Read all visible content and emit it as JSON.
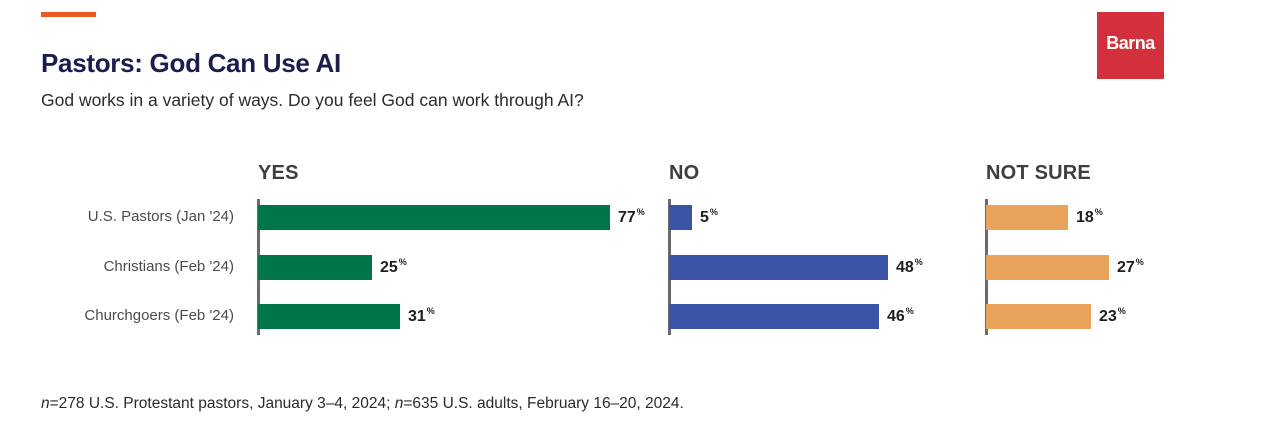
{
  "header": {
    "title": "Pastors: God Can Use AI",
    "subtitle": "God works in a variety of ways. Do you feel God can work through AI?",
    "logo_text": "Barna"
  },
  "footnote": {
    "n1_symbol": "n",
    "n1_text": "=278 U.S. Protestant pastors, January 3–4, 2024; ",
    "n2_symbol": "n",
    "n2_text": "=635 U.S. adults, February 16–20, 2024."
  },
  "colors": {
    "yes": "#00754a",
    "no": "#3b53a4",
    "not_sure": "#e9a35a",
    "accent": "#ec5a24",
    "logo_bg": "#d1303c",
    "title": "#1b1d4f"
  },
  "chart_data": {
    "type": "bar",
    "orientation": "horizontal",
    "title": "Pastors: God Can Use AI",
    "categories": [
      "U.S. Pastors (Jan '24)",
      "Christians (Feb '24)",
      "Churchgoers (Feb '24)"
    ],
    "value_suffix": "%",
    "series": [
      {
        "name": "YES",
        "values": [
          77,
          25,
          31
        ]
      },
      {
        "name": "NO",
        "values": [
          5,
          48,
          46
        ]
      },
      {
        "name": "NOT SURE",
        "values": [
          18,
          27,
          23
        ]
      }
    ],
    "xlim": [
      0,
      100
    ],
    "grid": false
  }
}
